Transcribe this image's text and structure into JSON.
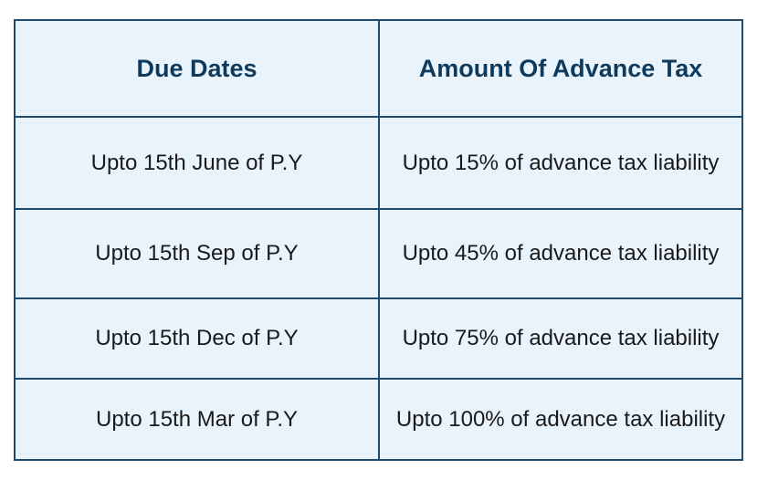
{
  "table": {
    "headers": {
      "due_dates": "Due Dates",
      "amount": "Amount Of Advance Tax"
    },
    "rows": [
      {
        "due_date": "Upto 15th  June of P.Y",
        "amount": "Upto 15% of advance tax liability"
      },
      {
        "due_date": "Upto 15th  Sep of P.Y",
        "amount": "Upto 45% of advance tax liability"
      },
      {
        "due_date": "Upto 15th  Dec of P.Y",
        "amount": "Upto 75% of advance tax liability"
      },
      {
        "due_date": "Upto 15th  Mar of P.Y",
        "amount": "Upto 100% of advance tax liability"
      }
    ]
  },
  "colors": {
    "cell_background": "#e9f3fb",
    "border": "#1f4a6b",
    "header_text": "#0f3a5c",
    "body_text": "#1a1a1a"
  }
}
